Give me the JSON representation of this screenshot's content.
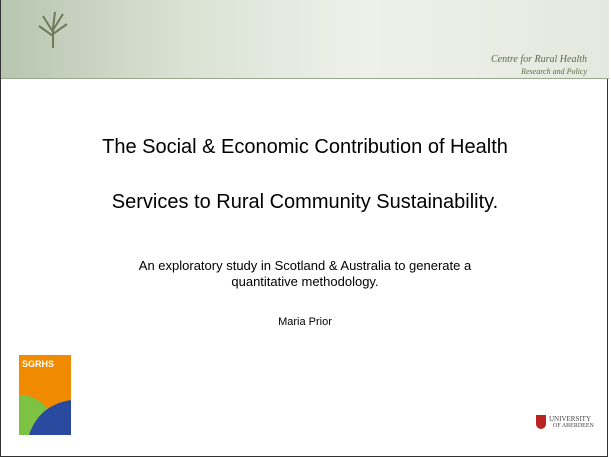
{
  "header": {
    "org_line1": "Centre for Rural Health",
    "org_line2": "Research and Policy"
  },
  "slide": {
    "title_line1": "The Social & Economic Contribution of Health",
    "title_line2": "Services to Rural Community Sustainability.",
    "subtitle_line1": "An exploratory study in Scotland & Australia to generate a",
    "subtitle_line2": "quantitative methodology.",
    "author": "Maria Prior"
  },
  "logos": {
    "left": "SGRHS",
    "right_line1": "UNIVERSITY",
    "right_line2": "OF ABERDEEN"
  }
}
